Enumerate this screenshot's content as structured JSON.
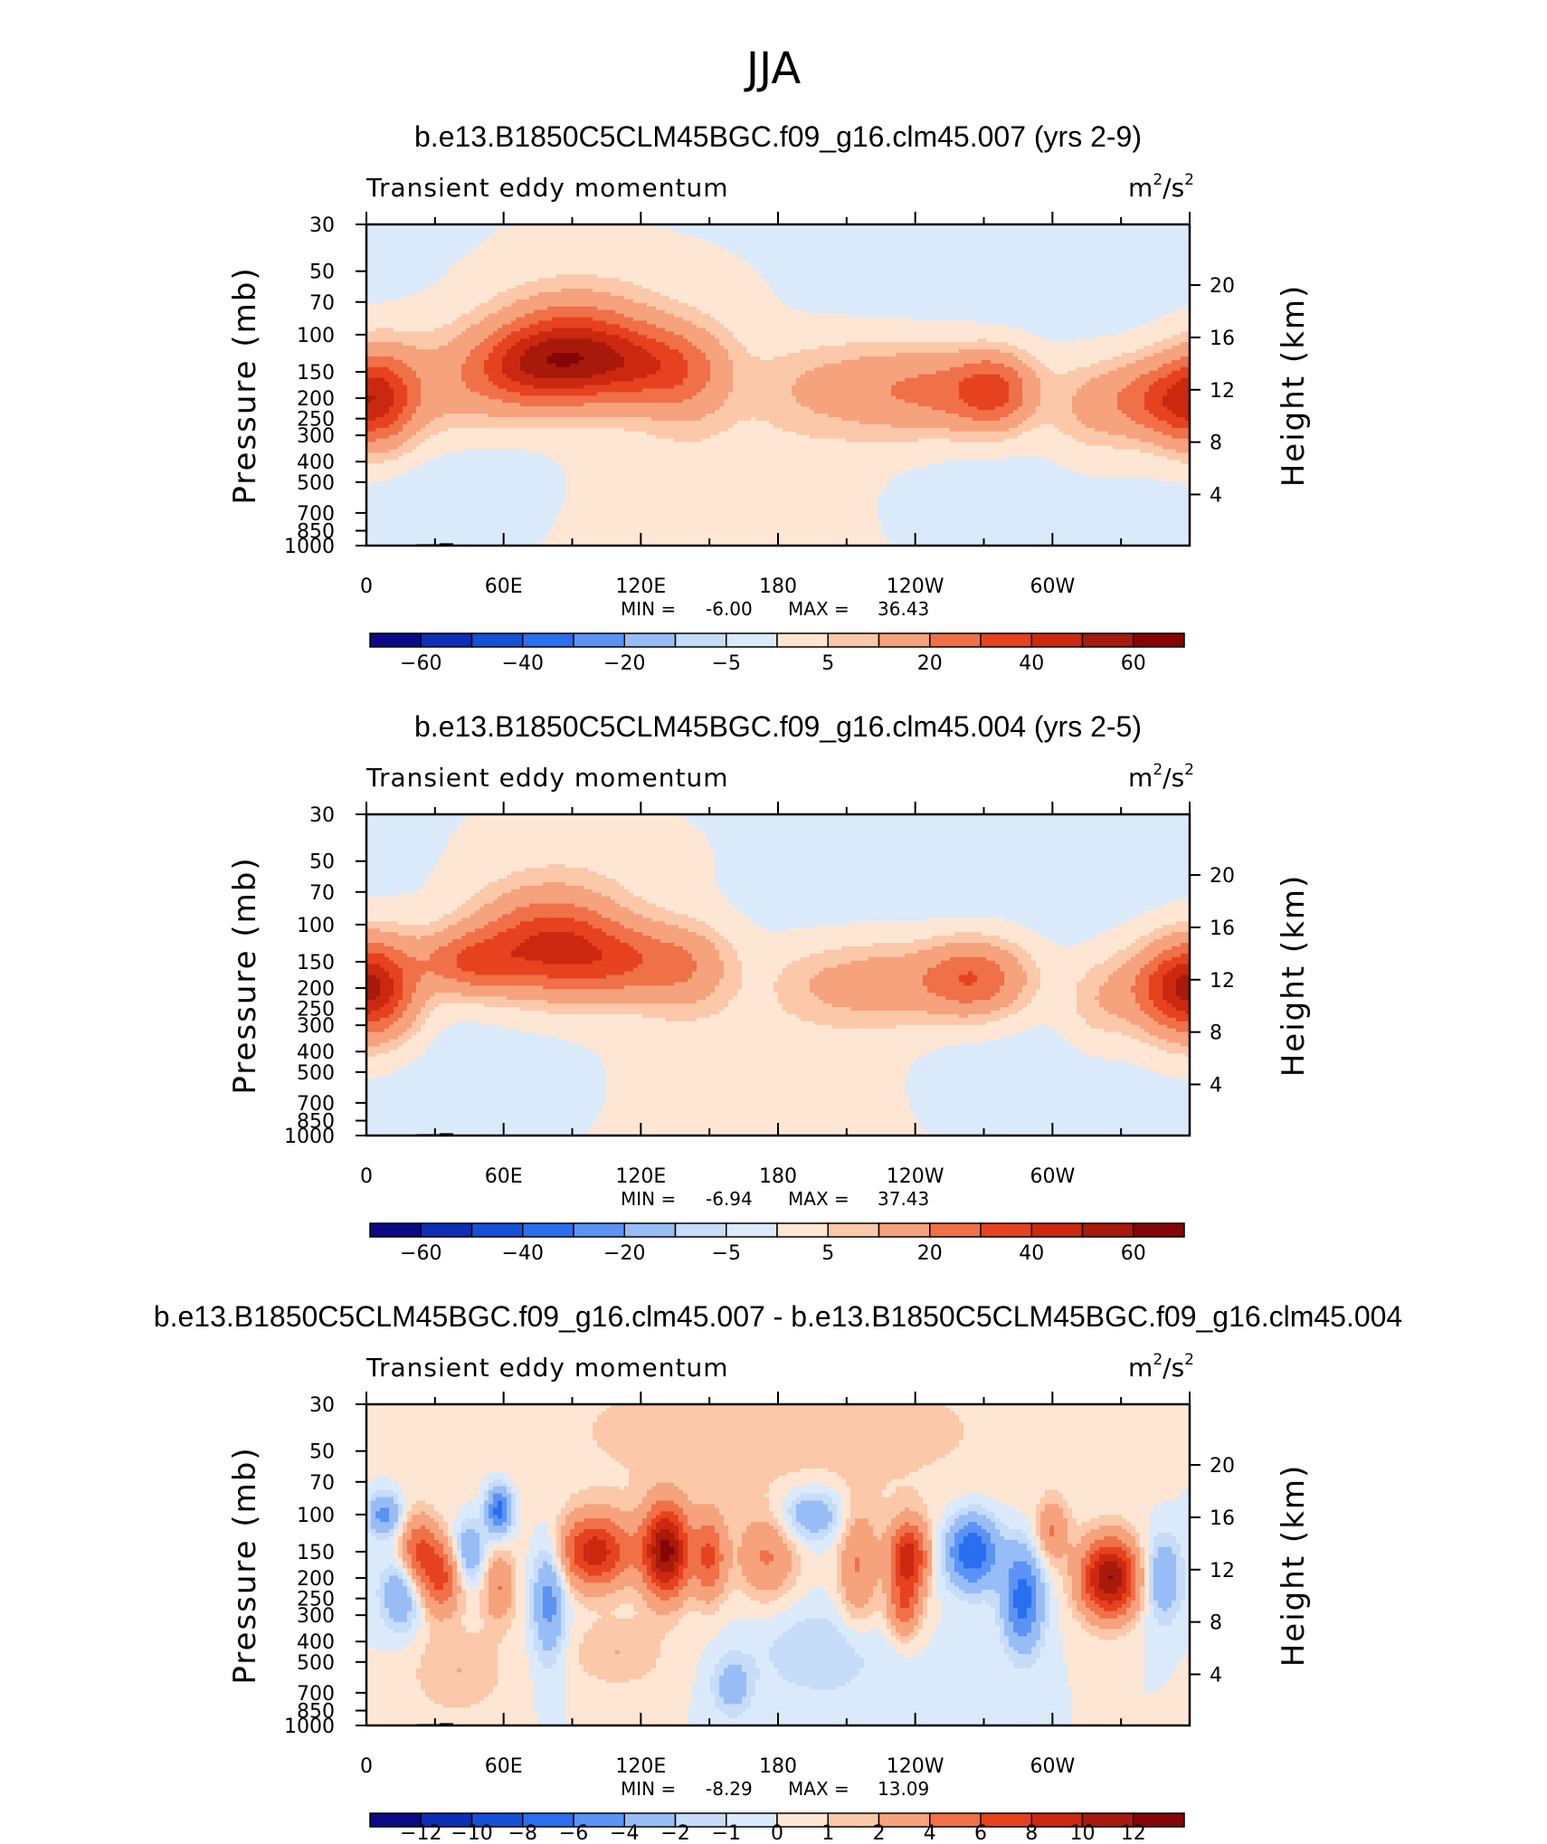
{
  "page_title": "JJA",
  "colors": {
    "cbar_full": [
      "#0a0a85",
      "#0d2fb5",
      "#1550d8",
      "#2a6ff0",
      "#5b93f5",
      "#98bdf6",
      "#c6dcf8",
      "#dbeafb",
      "#fde6d4",
      "#fbc8a9",
      "#f6a27d",
      "#f07048",
      "#e6421f",
      "#cc2810",
      "#a71a0c",
      "#850606"
    ],
    "cbar_diff": [
      "#0a0a85",
      "#0d2fb5",
      "#1550d8",
      "#2a6ff0",
      "#5b93f5",
      "#98bdf6",
      "#c6dcf8",
      "#dbeafb",
      "#fde6d4",
      "#fbc8a9",
      "#f6a27d",
      "#f07048",
      "#e6421f",
      "#cc2810",
      "#a71a0c",
      "#850606"
    ]
  },
  "chart_data": [
    {
      "type": "heatmap",
      "title": "b.e13.B1850C5CLM45BGC.f09_g16.clm45.007 (yrs 2-9)",
      "left_string": "Transient eddy momentum",
      "units": {
        "base": "m",
        "sup1": "2",
        "mid": "/s",
        "sup2": "2"
      },
      "xlabel": "",
      "ylabel": "Pressure (mb)",
      "ylabel_right": "Height (km)",
      "x_ticks": [
        "0",
        "60E",
        "120E",
        "180",
        "120W",
        "60W"
      ],
      "x_tick_lon": [
        0,
        60,
        120,
        180,
        240,
        300
      ],
      "xlim": [
        0,
        360
      ],
      "y_ticks": [
        "30",
        "50",
        "70",
        "100",
        "150",
        "200",
        "250",
        "300",
        "400",
        "500",
        "700",
        "850",
        "1000"
      ],
      "y_tick_p": [
        30,
        50,
        70,
        100,
        150,
        200,
        250,
        300,
        400,
        500,
        700,
        850,
        1000
      ],
      "ylim": [
        1000,
        30
      ],
      "y2_ticks": [
        "20",
        "16",
        "12",
        "8",
        "4"
      ],
      "y2_tick_km": [
        20,
        16,
        12,
        8,
        4
      ],
      "stats": {
        "min_label": "MIN =",
        "min": "-6.00",
        "max_label": "MAX =",
        "max": "36.43"
      },
      "contour_levels": [
        -70,
        -60,
        -50,
        -40,
        -30,
        -20,
        -10,
        -5,
        0,
        5,
        10,
        20,
        30,
        40,
        50,
        60,
        70
      ],
      "colorbar_labels": [
        "−60",
        "−40",
        "−20",
        "−5",
        "5",
        "20",
        "40",
        "60"
      ],
      "colorbar_label_boxes": [
        1,
        3,
        5,
        7,
        9,
        11,
        13,
        15
      ],
      "features": [
        {
          "lon": 5,
          "p": 200,
          "value": 34,
          "dlon": 12,
          "dlogp": 0.16
        },
        {
          "lon": 35,
          "p": 175,
          "value": 11,
          "dlon": 20,
          "dlogp": 0.17
        },
        {
          "lon": 70,
          "p": 145,
          "value": 28,
          "dlon": 18,
          "dlogp": 0.13
        },
        {
          "lon": 90,
          "p": 115,
          "value": 34,
          "dlon": 22,
          "dlogp": 0.16
        },
        {
          "lon": 115,
          "p": 140,
          "value": 28,
          "dlon": 22,
          "dlogp": 0.13
        },
        {
          "lon": 140,
          "p": 160,
          "value": 14,
          "dlon": 14,
          "dlogp": 0.16
        },
        {
          "lon": 190,
          "p": 175,
          "value": 6,
          "dlon": 18,
          "dlogp": 0.14
        },
        {
          "lon": 225,
          "p": 180,
          "value": 14,
          "dlon": 22,
          "dlogp": 0.15
        },
        {
          "lon": 275,
          "p": 185,
          "value": 29,
          "dlon": 12,
          "dlogp": 0.12
        },
        {
          "lon": 255,
          "p": 185,
          "value": 15,
          "dlon": 18,
          "dlogp": 0.13
        },
        {
          "lon": 345,
          "p": 205,
          "value": 27,
          "dlon": 16,
          "dlogp": 0.13
        },
        {
          "lon": 315,
          "p": 220,
          "value": 9,
          "dlon": 12,
          "dlogp": 0.14
        },
        {
          "lon": 180,
          "p": 400,
          "value": 3,
          "dlon": 70,
          "dlogp": 0.3
        },
        {
          "lon": 120,
          "p": 60,
          "value": 3,
          "dlon": 50,
          "dlogp": 0.2
        },
        {
          "lon": 40,
          "p": 450,
          "value": -3,
          "dlon": 35,
          "dlogp": 0.2
        },
        {
          "lon": 255,
          "p": 500,
          "value": -3,
          "dlon": 40,
          "dlogp": 0.22
        },
        {
          "lon": 240,
          "p": 50,
          "value": -2,
          "dlon": 120,
          "dlogp": 0.35
        }
      ]
    },
    {
      "type": "heatmap",
      "title": "b.e13.B1850C5CLM45BGC.f09_g16.clm45.004 (yrs 2-5)",
      "left_string": "Transient eddy momentum",
      "units": {
        "base": "m",
        "sup1": "2",
        "mid": "/s",
        "sup2": "2"
      },
      "xlabel": "",
      "ylabel": "Pressure (mb)",
      "ylabel_right": "Height (km)",
      "x_ticks": [
        "0",
        "60E",
        "120E",
        "180",
        "120W",
        "60W"
      ],
      "x_tick_lon": [
        0,
        60,
        120,
        180,
        240,
        300
      ],
      "xlim": [
        0,
        360
      ],
      "y_ticks": [
        "30",
        "50",
        "70",
        "100",
        "150",
        "200",
        "250",
        "300",
        "400",
        "500",
        "700",
        "850",
        "1000"
      ],
      "y_tick_p": [
        30,
        50,
        70,
        100,
        150,
        200,
        250,
        300,
        400,
        500,
        700,
        850,
        1000
      ],
      "ylim": [
        1000,
        30
      ],
      "y2_ticks": [
        "20",
        "16",
        "12",
        "8",
        "4"
      ],
      "y2_tick_km": [
        20,
        16,
        12,
        8,
        4
      ],
      "stats": {
        "min_label": "MIN =",
        "min": "-6.94",
        "max_label": "MAX =",
        "max": "37.43"
      },
      "contour_levels": [
        -70,
        -60,
        -50,
        -40,
        -30,
        -20,
        -10,
        -5,
        0,
        5,
        10,
        20,
        30,
        40,
        50,
        60,
        70
      ],
      "colorbar_labels": [
        "−60",
        "−40",
        "−20",
        "−5",
        "5",
        "20",
        "40",
        "60"
      ],
      "colorbar_label_boxes": [
        1,
        3,
        5,
        7,
        9,
        11,
        13,
        15
      ],
      "features": [
        {
          "lon": 5,
          "p": 200,
          "value": 35,
          "dlon": 12,
          "dlogp": 0.16
        },
        {
          "lon": 45,
          "p": 150,
          "value": 26,
          "dlon": 16,
          "dlogp": 0.1
        },
        {
          "lon": 80,
          "p": 120,
          "value": 36,
          "dlon": 22,
          "dlogp": 0.16
        },
        {
          "lon": 110,
          "p": 150,
          "value": 22,
          "dlon": 22,
          "dlogp": 0.12
        },
        {
          "lon": 140,
          "p": 160,
          "value": 13,
          "dlon": 14,
          "dlogp": 0.14
        },
        {
          "lon": 225,
          "p": 190,
          "value": 14,
          "dlon": 18,
          "dlogp": 0.13
        },
        {
          "lon": 265,
          "p": 180,
          "value": 30,
          "dlon": 16,
          "dlogp": 0.12
        },
        {
          "lon": 350,
          "p": 200,
          "value": 29,
          "dlon": 14,
          "dlogp": 0.14
        },
        {
          "lon": 320,
          "p": 230,
          "value": 8,
          "dlon": 10,
          "dlogp": 0.13
        },
        {
          "lon": 195,
          "p": 190,
          "value": 6,
          "dlon": 14,
          "dlogp": 0.12
        },
        {
          "lon": 180,
          "p": 420,
          "value": 3,
          "dlon": 70,
          "dlogp": 0.3
        },
        {
          "lon": 100,
          "p": 50,
          "value": 3,
          "dlon": 40,
          "dlogp": 0.18
        },
        {
          "lon": 60,
          "p": 500,
          "value": -3,
          "dlon": 40,
          "dlogp": 0.2
        },
        {
          "lon": 270,
          "p": 480,
          "value": -3,
          "dlon": 40,
          "dlogp": 0.22
        },
        {
          "lon": 250,
          "p": 55,
          "value": -2,
          "dlon": 110,
          "dlogp": 0.35
        }
      ]
    },
    {
      "type": "heatmap",
      "title": "b.e13.B1850C5CLM45BGC.f09_g16.clm45.007 - b.e13.B1850C5CLM45BGC.f09_g16.clm45.004",
      "left_string": "Transient eddy momentum",
      "units": {
        "base": "m",
        "sup1": "2",
        "mid": "/s",
        "sup2": "2"
      },
      "xlabel": "",
      "ylabel": "Pressure (mb)",
      "ylabel_right": "Height (km)",
      "x_ticks": [
        "0",
        "60E",
        "120E",
        "180",
        "120W",
        "60W"
      ],
      "x_tick_lon": [
        0,
        60,
        120,
        180,
        240,
        300
      ],
      "xlim": [
        0,
        360
      ],
      "y_ticks": [
        "30",
        "50",
        "70",
        "100",
        "150",
        "200",
        "250",
        "300",
        "400",
        "500",
        "700",
        "850",
        "1000"
      ],
      "y_tick_p": [
        30,
        50,
        70,
        100,
        150,
        200,
        250,
        300,
        400,
        500,
        700,
        850,
        1000
      ],
      "ylim": [
        1000,
        30
      ],
      "y2_ticks": [
        "20",
        "16",
        "12",
        "8",
        "4"
      ],
      "y2_tick_km": [
        20,
        16,
        12,
        8,
        4
      ],
      "stats": {
        "min_label": "MIN =",
        "min": "-8.29",
        "max_label": "MAX =",
        "max": "13.09"
      },
      "contour_levels": [
        -14,
        -12,
        -10,
        -8,
        -6,
        -4,
        -2,
        -1,
        0,
        1,
        2,
        4,
        6,
        8,
        10,
        12,
        14
      ],
      "colorbar_labels": [
        "−12",
        "−10",
        "−8",
        "−6",
        "−4",
        "−2",
        "−1",
        "0",
        "1",
        "2",
        "4",
        "6",
        "8",
        "10",
        "12"
      ],
      "colorbar_label_boxes": [
        1,
        2,
        3,
        4,
        5,
        6,
        7,
        8,
        9,
        10,
        11,
        12,
        13,
        14,
        15
      ],
      "features": [
        {
          "lon": 8,
          "p": 100,
          "value": -5,
          "dlon": 5,
          "dlogp": 0.07
        },
        {
          "lon": 15,
          "p": 240,
          "value": -4,
          "dlon": 6,
          "dlogp": 0.12
        },
        {
          "lon": 23,
          "p": 150,
          "value": 6,
          "dlon": 6,
          "dlogp": 0.12
        },
        {
          "lon": 33,
          "p": 200,
          "value": 6,
          "dlon": 6,
          "dlogp": 0.12
        },
        {
          "lon": 45,
          "p": 150,
          "value": -4,
          "dlon": 5,
          "dlogp": 0.1
        },
        {
          "lon": 58,
          "p": 95,
          "value": -7,
          "dlon": 4,
          "dlogp": 0.08
        },
        {
          "lon": 58,
          "p": 220,
          "value": 4,
          "dlon": 5,
          "dlogp": 0.12
        },
        {
          "lon": 80,
          "p": 250,
          "value": -5,
          "dlon": 5,
          "dlogp": 0.2
        },
        {
          "lon": 100,
          "p": 150,
          "value": 9,
          "dlon": 11,
          "dlogp": 0.12
        },
        {
          "lon": 131,
          "p": 150,
          "value": 12.5,
          "dlon": 7,
          "dlogp": 0.15
        },
        {
          "lon": 150,
          "p": 160,
          "value": 6,
          "dlon": 5,
          "dlogp": 0.14
        },
        {
          "lon": 175,
          "p": 160,
          "value": 4,
          "dlon": 9,
          "dlogp": 0.14
        },
        {
          "lon": 195,
          "p": 100,
          "value": -4,
          "dlon": 10,
          "dlogp": 0.09
        },
        {
          "lon": 215,
          "p": 180,
          "value": 4,
          "dlon": 6,
          "dlogp": 0.2
        },
        {
          "lon": 237,
          "p": 160,
          "value": 9,
          "dlon": 6,
          "dlogp": 0.12
        },
        {
          "lon": 235,
          "p": 280,
          "value": 5,
          "dlon": 5,
          "dlogp": 0.1
        },
        {
          "lon": 265,
          "p": 150,
          "value": -8,
          "dlon": 8,
          "dlogp": 0.12
        },
        {
          "lon": 287,
          "p": 250,
          "value": -7,
          "dlon": 6,
          "dlogp": 0.17
        },
        {
          "lon": 300,
          "p": 120,
          "value": 4,
          "dlon": 5,
          "dlogp": 0.1
        },
        {
          "lon": 325,
          "p": 200,
          "value": 12,
          "dlon": 9,
          "dlogp": 0.13
        },
        {
          "lon": 348,
          "p": 200,
          "value": -4,
          "dlon": 6,
          "dlogp": 0.14
        },
        {
          "lon": 110,
          "p": 450,
          "value": 2,
          "dlon": 15,
          "dlogp": 0.12
        },
        {
          "lon": 200,
          "p": 450,
          "value": -2,
          "dlon": 20,
          "dlogp": 0.15
        },
        {
          "lon": 40,
          "p": 550,
          "value": 2,
          "dlon": 15,
          "dlogp": 0.15
        },
        {
          "lon": 160,
          "p": 650,
          "value": -3,
          "dlon": 6,
          "dlogp": 0.1
        },
        {
          "lon": 180,
          "p": 40,
          "value": 1.5,
          "dlon": 90,
          "dlogp": 0.3
        }
      ]
    }
  ]
}
